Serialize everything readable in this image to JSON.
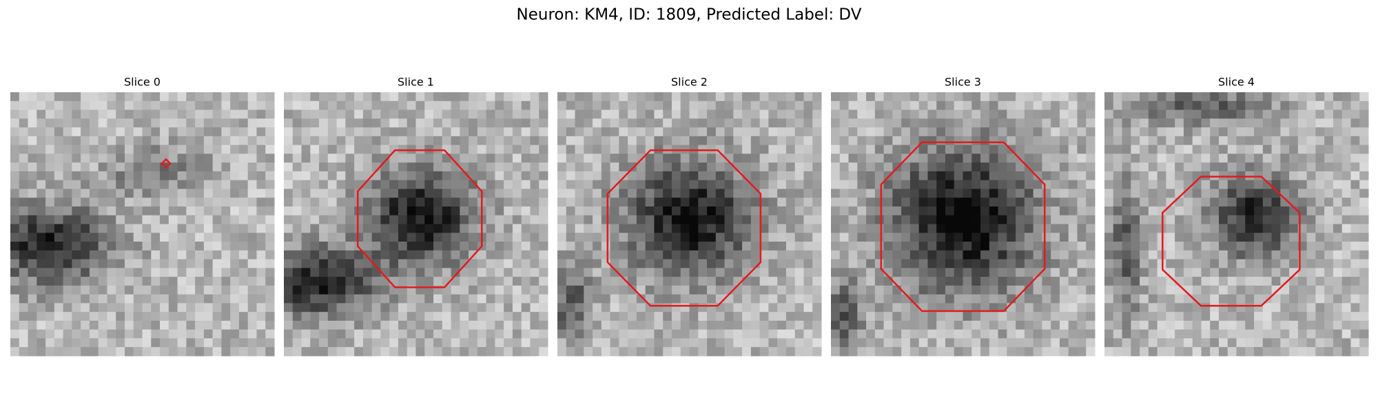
{
  "title": "Neuron: KM4, ID: 1809, Predicted Label: DV",
  "panels": [
    {
      "title": "Slice 0"
    },
    {
      "title": "Slice 1"
    },
    {
      "title": "Slice 2"
    },
    {
      "title": "Slice 3"
    },
    {
      "title": "Slice 4"
    }
  ]
}
